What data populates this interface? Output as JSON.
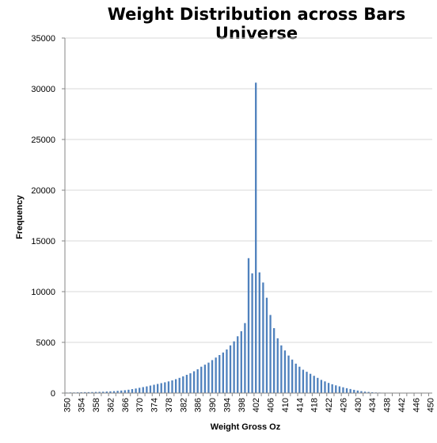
{
  "chart_data": {
    "type": "bar",
    "title": "Weight Distribution across Bars Universe",
    "xlabel": "Weight Gross Oz",
    "ylabel": "Frequency",
    "ylim": [
      0,
      35000
    ],
    "yticks": [
      0,
      5000,
      10000,
      15000,
      20000,
      25000,
      30000,
      35000
    ],
    "xticks": [
      350,
      354,
      358,
      362,
      366,
      370,
      374,
      378,
      382,
      386,
      390,
      394,
      398,
      402,
      406,
      410,
      414,
      418,
      422,
      426,
      430,
      434,
      438,
      442,
      446,
      450
    ],
    "grid": true,
    "legend": "none",
    "bar_color": "#4f81bd",
    "categories": [
      350,
      351,
      352,
      353,
      354,
      355,
      356,
      357,
      358,
      359,
      360,
      361,
      362,
      363,
      364,
      365,
      366,
      367,
      368,
      369,
      370,
      371,
      372,
      373,
      374,
      375,
      376,
      377,
      378,
      379,
      380,
      381,
      382,
      383,
      384,
      385,
      386,
      387,
      388,
      389,
      390,
      391,
      392,
      393,
      394,
      395,
      396,
      397,
      398,
      399,
      400,
      401,
      402,
      403,
      404,
      405,
      406,
      407,
      408,
      409,
      410,
      411,
      412,
      413,
      414,
      415,
      416,
      417,
      418,
      419,
      420,
      421,
      422,
      423,
      424,
      425,
      426,
      427,
      428,
      429,
      430,
      431,
      432,
      433,
      434,
      435,
      436,
      437,
      438,
      439,
      440,
      441,
      442,
      443,
      444,
      445,
      446,
      447,
      448,
      449,
      450
    ],
    "values": [
      50,
      60,
      60,
      70,
      80,
      90,
      90,
      100,
      110,
      120,
      130,
      150,
      170,
      190,
      220,
      250,
      280,
      330,
      390,
      450,
      520,
      590,
      660,
      740,
      820,
      900,
      980,
      1060,
      1150,
      1250,
      1370,
      1500,
      1650,
      1800,
      1950,
      2150,
      2350,
      2600,
      2800,
      3000,
      3250,
      3500,
      3750,
      4000,
      4300,
      4700,
      5100,
      5600,
      6100,
      6900,
      13300,
      11800,
      30600,
      11900,
      10900,
      9400,
      7700,
      6400,
      5400,
      4700,
      4200,
      3700,
      3300,
      2900,
      2600,
      2300,
      2100,
      1900,
      1700,
      1500,
      1300,
      1150,
      1000,
      870,
      760,
      660,
      570,
      480,
      400,
      320,
      250,
      190,
      140,
      110,
      80,
      60,
      50,
      40,
      40,
      30,
      30,
      30,
      30,
      30,
      30,
      30,
      30,
      30,
      30,
      30,
      30
    ]
  }
}
